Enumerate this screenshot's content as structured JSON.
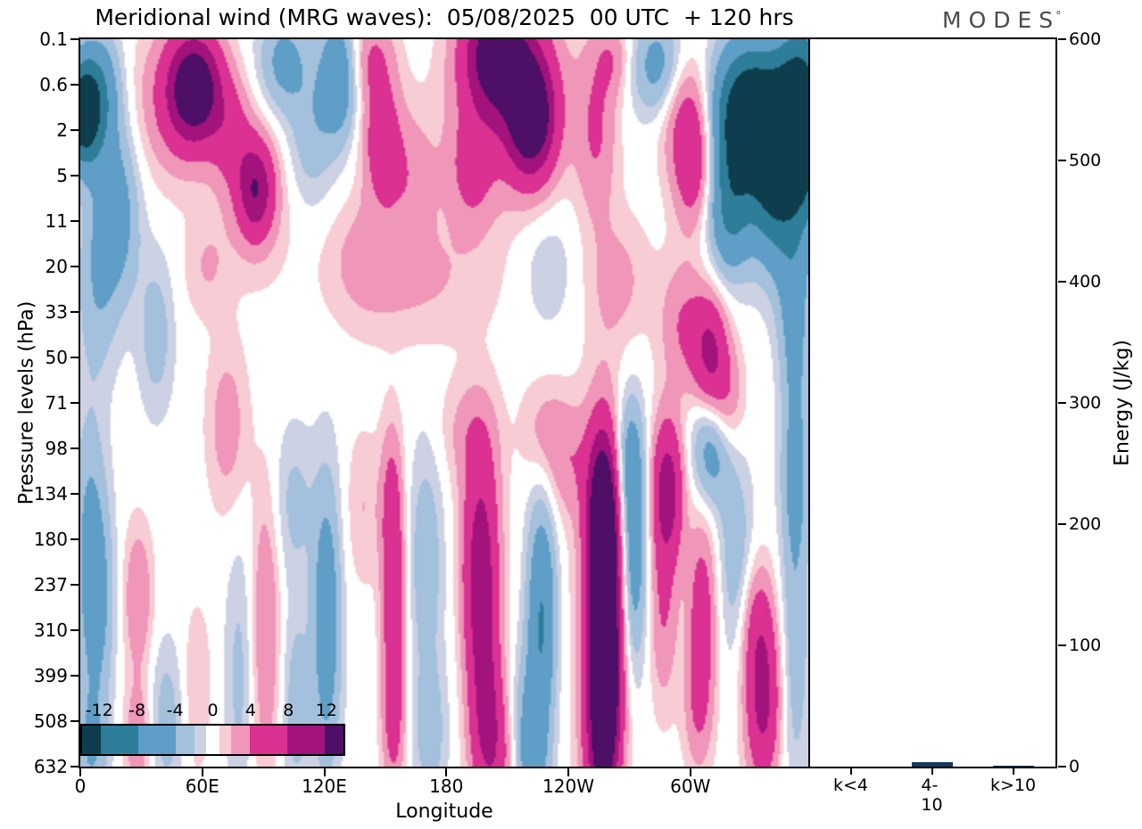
{
  "header": {
    "title": "Meridional wind (MRG waves):  05/08/2025  00 UTC  + 120 hrs",
    "logo_text": "MODES",
    "logo_degree": "°"
  },
  "chart_data": [
    {
      "type": "heatmap",
      "title": "Meridional wind (MRG waves):  05/08/2025  00 UTC  + 120 hrs",
      "xlabel": "Longitude",
      "ylabel": "Pressure levels (hPa)",
      "x_max_deg": 358,
      "x_ticks": [
        {
          "lon": 0,
          "label": "0"
        },
        {
          "lon": 60,
          "label": "60E"
        },
        {
          "lon": 120,
          "label": "120E"
        },
        {
          "lon": 180,
          "label": "180"
        },
        {
          "lon": 240,
          "label": "120W"
        },
        {
          "lon": 300,
          "label": "60W"
        }
      ],
      "y_tick_labels": [
        "0.1",
        "0.6",
        "2",
        "5",
        "11",
        "20",
        "33",
        "50",
        "71",
        "98",
        "134",
        "180",
        "237",
        "310",
        "399",
        "508",
        "632"
      ],
      "n_levels": 16,
      "colour_levels": [
        -12,
        -8,
        -4,
        -2,
        -0.75,
        0.75,
        2,
        4,
        8,
        12
      ],
      "colour_palette": [
        "#0e3e4d",
        "#2e7d99",
        "#5f9ec6",
        "#a3c0dc",
        "#ccd1e4",
        "#ffffff",
        "#f8ccd5",
        "#f096b8",
        "#da3193",
        "#a3137c",
        "#4e0f66"
      ],
      "colorbar": {
        "tick_labels": [
          "-12",
          "-8",
          "-4",
          "0",
          "4",
          "8",
          "12"
        ],
        "tick_values": [
          -12,
          -8,
          -4,
          0,
          4,
          8,
          12
        ],
        "vmin": -14,
        "vmax": 14
      },
      "blob_format": [
        "lon_deg",
        "level_index",
        "sigma_lon",
        "sigma_level",
        "amplitude"
      ],
      "blobs": [
        [
          1,
          1.6,
          6,
          0.8,
          -16
        ],
        [
          10,
          1.1,
          7,
          0.9,
          -6
        ],
        [
          56,
          1.05,
          9,
          0.8,
          15
        ],
        [
          48,
          1.4,
          16,
          1.2,
          4
        ],
        [
          74,
          2.1,
          7,
          0.8,
          4
        ],
        [
          86,
          3.3,
          6,
          0.7,
          9
        ],
        [
          86,
          3.4,
          11,
          1.2,
          3
        ],
        [
          100,
          0.5,
          9,
          0.8,
          -5
        ],
        [
          127,
          0.8,
          7,
          1,
          -7
        ],
        [
          113,
          2.2,
          8,
          1,
          -3
        ],
        [
          143,
          0.4,
          8,
          0.7,
          4
        ],
        [
          148,
          2.2,
          7,
          1,
          6
        ],
        [
          163,
          3,
          9,
          1,
          3
        ],
        [
          205,
          0.3,
          11,
          0.9,
          14
        ],
        [
          222,
          1.7,
          8,
          0.9,
          15
        ],
        [
          212,
          1.2,
          19,
          1.6,
          5
        ],
        [
          192,
          2.9,
          8,
          0.9,
          4
        ],
        [
          254,
          2,
          7,
          1.4,
          4
        ],
        [
          262,
          0.4,
          6,
          0.6,
          3
        ],
        [
          285,
          0.6,
          9,
          0.8,
          -6
        ],
        [
          302,
          2.7,
          7,
          1,
          7
        ],
        [
          296,
          1.4,
          9,
          1,
          4
        ],
        [
          329,
          1.7,
          12,
          1.1,
          -18
        ],
        [
          352,
          2.2,
          10,
          1.4,
          -12
        ],
        [
          356,
          1.5,
          8,
          1.5,
          -8
        ],
        [
          320,
          3.8,
          8,
          1,
          -8
        ],
        [
          340,
          3.4,
          7,
          1.2,
          -7
        ],
        [
          351,
          5.5,
          6,
          1.3,
          -4
        ],
        [
          17,
          3.8,
          8,
          1.4,
          -6
        ],
        [
          7,
          5.6,
          7,
          1.5,
          -3
        ],
        [
          37,
          6.5,
          6,
          1.2,
          -3
        ],
        [
          165,
          5.3,
          28,
          1,
          2.2
        ],
        [
          140,
          4.7,
          12,
          0.9,
          2
        ],
        [
          230,
          5,
          10,
          1,
          -1.8
        ],
        [
          265,
          5.3,
          11,
          1,
          2.4
        ],
        [
          297,
          6.3,
          8,
          1,
          4
        ],
        [
          310,
          6.9,
          6,
          0.9,
          8
        ],
        [
          318,
          8,
          6,
          0.9,
          4
        ],
        [
          352,
          7.5,
          5,
          1.6,
          -3
        ],
        [
          62,
          5,
          8,
          0.8,
          2
        ],
        [
          72,
          8.5,
          7,
          1.3,
          3
        ],
        [
          105,
          10.2,
          7,
          1.2,
          -2.5
        ],
        [
          139,
          10.3,
          6,
          1.2,
          2
        ],
        [
          190,
          8.6,
          10,
          0.8,
          2
        ],
        [
          7,
          12.4,
          6,
          1.5,
          -6
        ],
        [
          4,
          10,
          6,
          1.4,
          -3
        ],
        [
          5,
          15.6,
          6,
          1,
          -4
        ],
        [
          28,
          12.3,
          5,
          1.1,
          4
        ],
        [
          28,
          15.4,
          5,
          0.9,
          3.5
        ],
        [
          42,
          15,
          6,
          1.2,
          -3
        ],
        [
          57,
          14.3,
          5,
          1.3,
          2
        ],
        [
          78,
          14,
          5,
          2,
          -2.5
        ],
        [
          91,
          13,
          5,
          2.2,
          4
        ],
        [
          106,
          14.6,
          5,
          1.5,
          -3
        ],
        [
          121,
          12.8,
          5,
          2.2,
          -6.5
        ],
        [
          154,
          12.3,
          4,
          1.5,
          6.5
        ],
        [
          154,
          15,
          4,
          1.2,
          5
        ],
        [
          153,
          10,
          4,
          1.2,
          4
        ],
        [
          170,
          11.5,
          6,
          1.8,
          -3.5
        ],
        [
          172,
          15.3,
          6,
          1.1,
          -3
        ],
        [
          197,
          12.2,
          6,
          1.5,
          10
        ],
        [
          200,
          14.8,
          6,
          1.2,
          7
        ],
        [
          197,
          9.9,
          7,
          1.4,
          4
        ],
        [
          205,
          16,
          8,
          1,
          4
        ],
        [
          227,
          12.7,
          5,
          1.8,
          -8
        ],
        [
          220,
          15.2,
          6,
          1.2,
          -4
        ],
        [
          240,
          9.3,
          8,
          0.9,
          3
        ],
        [
          228,
          8.6,
          8,
          0.8,
          2.5
        ],
        [
          258,
          12.5,
          5.5,
          2,
          17
        ],
        [
          257,
          10.3,
          5,
          1.2,
          10
        ],
        [
          258,
          14.6,
          5,
          1.2,
          10
        ],
        [
          257,
          12.5,
          9,
          3.2,
          4
        ],
        [
          256,
          16,
          6,
          1,
          5
        ],
        [
          272,
          11.3,
          5,
          1.8,
          -7
        ],
        [
          270,
          9.2,
          5,
          1,
          -4
        ],
        [
          289,
          9.9,
          5.5,
          1.1,
          10
        ],
        [
          287,
          12.5,
          5,
          1.5,
          4
        ],
        [
          306,
          12.7,
          5,
          1.5,
          6
        ],
        [
          304,
          14.8,
          5,
          1,
          3
        ],
        [
          311,
          9,
          7,
          0.9,
          -6
        ],
        [
          323,
          11.5,
          6,
          1.5,
          -3.5
        ],
        [
          336,
          14.6,
          6,
          1.3,
          9
        ],
        [
          333,
          12.8,
          6,
          1,
          4
        ],
        [
          352,
          13,
          5,
          2.5,
          -3.5
        ],
        [
          352,
          9.8,
          5,
          1.2,
          -3
        ],
        [
          222,
          16,
          6,
          0.8,
          -3
        ]
      ]
    },
    {
      "type": "bar",
      "categories": [
        "k<4",
        "4-10",
        "k>10"
      ],
      "values": [
        0,
        3.5,
        0.8
      ],
      "ylabel": "Energy (J/kg)",
      "ylim": [
        0,
        600
      ],
      "y_ticks": [
        0,
        100,
        200,
        300,
        400,
        500,
        600
      ],
      "bar_color": "#143a5e"
    }
  ]
}
